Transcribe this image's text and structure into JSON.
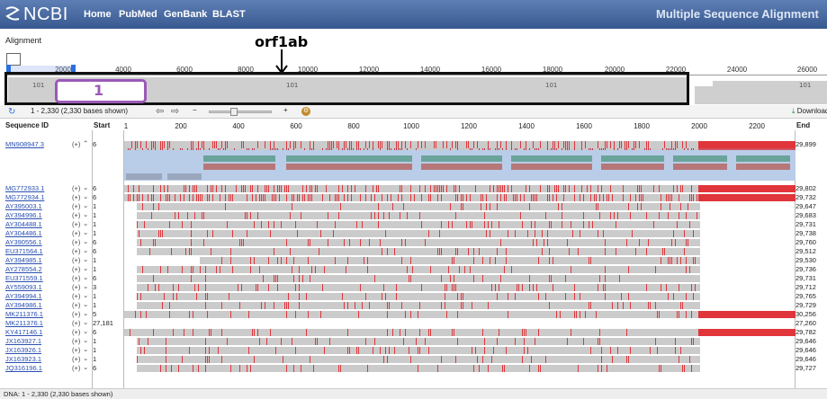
{
  "header": {
    "logo": "NCBI",
    "nav": [
      "Home",
      "PubMed",
      "GenBank",
      "BLAST"
    ],
    "app_title": "Multiple Sequence Alignment"
  },
  "section_label": "Alignment",
  "annotation": {
    "orf_label": "orf1ab",
    "box_label": "1"
  },
  "overview": {
    "ticks": [
      "2000",
      "4000",
      "6000",
      "8000",
      "10000",
      "12000",
      "14000",
      "16000",
      "18000",
      "20000",
      "22000",
      "24000",
      "26000"
    ],
    "panel_markers": [
      "101",
      "101",
      "101",
      "101"
    ]
  },
  "toolbar": {
    "range": "1 - 2,330 (2,330 bases shown)",
    "minus": "−",
    "plus": "+",
    "download": "Download"
  },
  "columns": {
    "id": "Sequence ID",
    "start": "Start",
    "end": "End",
    "ruler": [
      "1",
      "200",
      "400",
      "600",
      "800",
      "1000",
      "1200",
      "1400",
      "1600",
      "1800",
      "2000",
      "2200"
    ]
  },
  "rows": [
    {
      "id": "MN908947.3",
      "start": "6",
      "end": "29,899"
    },
    {
      "id": "MG772933.1",
      "start": "6",
      "end": "29,802"
    },
    {
      "id": "MG772934.1",
      "start": "6",
      "end": "29,732"
    },
    {
      "id": "AY395003.1",
      "start": "1",
      "end": "29,647"
    },
    {
      "id": "AY394996.1",
      "start": "1",
      "end": "29,683"
    },
    {
      "id": "AY304488.1",
      "start": "1",
      "end": "29,731"
    },
    {
      "id": "AY304486.1",
      "start": "1",
      "end": "29,738"
    },
    {
      "id": "AY390556.1",
      "start": "6",
      "end": "29,760"
    },
    {
      "id": "EU371564.1",
      "start": "6",
      "end": "29,512"
    },
    {
      "id": "AY394985.1",
      "start": "1",
      "end": "29,530"
    },
    {
      "id": "AY278554.2",
      "start": "1",
      "end": "29,736"
    },
    {
      "id": "EU371559.1",
      "start": "6",
      "end": "29,731"
    },
    {
      "id": "AY559093.1",
      "start": "3",
      "end": "29,712"
    },
    {
      "id": "AY394994.1",
      "start": "1",
      "end": "29,765"
    },
    {
      "id": "AY394986.1",
      "start": "1",
      "end": "29,729"
    },
    {
      "id": "MK211376.1",
      "start": "5",
      "end": "30,256"
    },
    {
      "id": "MK211376.1",
      "start": "27,181",
      "end": "27,260"
    },
    {
      "id": "KY417146.1",
      "start": "6",
      "end": "29,782"
    },
    {
      "id": "JX163927.1",
      "start": "1",
      "end": "29,646"
    },
    {
      "id": "JX163926.1",
      "start": "1",
      "end": "29,646"
    },
    {
      "id": "JX163923.1",
      "start": "1",
      "end": "29,646"
    },
    {
      "id": "JQ316196.1",
      "start": "6",
      "end": "29,727"
    }
  ],
  "row_plus": "(+)",
  "status": "DNA: 1 - 2,330 (2,330 bases shown)",
  "colors": {
    "mismatch": "#e0353a",
    "bar": "#cbcbcb",
    "accent": "#2a6fe0",
    "annotation": "#9b59b6"
  }
}
